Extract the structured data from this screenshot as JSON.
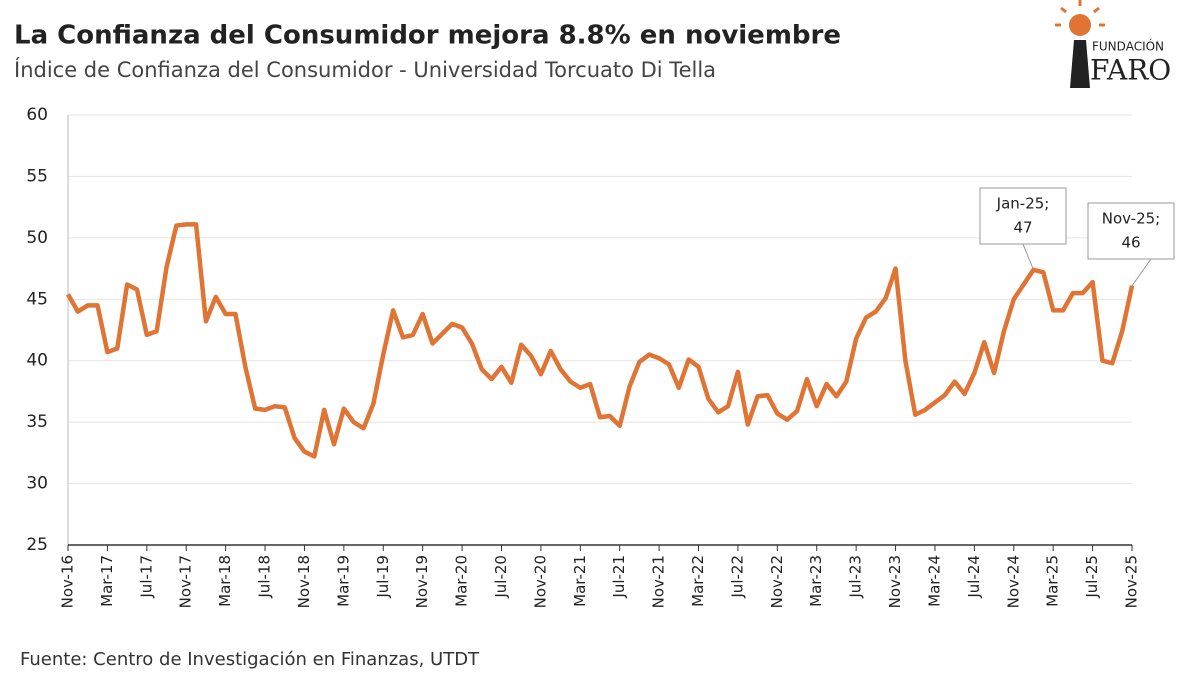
{
  "chart_data": {
    "type": "line",
    "title": "La Confianza del Consumidor mejora 8.8% en noviembre",
    "subtitle": "Índice de Confianza del Consumidor - Universidad Torcuato Di Tella",
    "source": "Fuente: Centro de Investigación en Finanzas, UTDT",
    "logo": {
      "top": "FUNDACIÓN",
      "bottom": "FARO"
    },
    "categories": [
      "Nov-16",
      null,
      null,
      null,
      "Mar-17",
      null,
      null,
      null,
      "Jul-17",
      null,
      null,
      null,
      "Nov-17",
      null,
      null,
      null,
      "Mar-18",
      null,
      null,
      null,
      "Jul-18",
      null,
      null,
      null,
      "Nov-18",
      null,
      null,
      null,
      "Mar-19",
      null,
      null,
      null,
      "Jul-19",
      null,
      null,
      null,
      "Nov-19",
      null,
      null,
      null,
      "Mar-20",
      null,
      null,
      null,
      "Jul-20",
      null,
      null,
      null,
      "Nov-20",
      null,
      null,
      null,
      "Mar-21",
      null,
      null,
      null,
      "Jul-21",
      null,
      null,
      null,
      "Nov-21",
      null,
      null,
      null,
      "Mar-22",
      null,
      null,
      null,
      "Jul-22",
      null,
      null,
      null,
      "Nov-22",
      null,
      null,
      null,
      "Mar-23",
      null,
      null,
      null,
      "Jul-23",
      null,
      null,
      null,
      "Nov-23",
      null,
      null,
      null,
      "Mar-24",
      null,
      null,
      null,
      "Jul-24",
      null,
      null,
      null,
      "Nov-24",
      null,
      null,
      null,
      "Mar-25",
      null,
      null,
      null,
      "Jul-25",
      null,
      null,
      null,
      "Nov-25"
    ],
    "series": [
      {
        "name": "Índice de Confianza del Consumidor",
        "color": "#e07434",
        "values": [
          45.4,
          44,
          44.5,
          44.5,
          40.7,
          41,
          46.2,
          45.8,
          42.1,
          42.4,
          47.6,
          51,
          51.1,
          51.1,
          43.2,
          45.2,
          43.8,
          43.8,
          39.5,
          36.1,
          36,
          36.3,
          36.2,
          33.7,
          32.6,
          32.2,
          36,
          33.2,
          36.1,
          35,
          34.5,
          36.5,
          40.5,
          44.1,
          41.9,
          42.1,
          43.8,
          41.4,
          42.2,
          43,
          42.7,
          41.4,
          39.3,
          38.5,
          39.5,
          38.2,
          41.3,
          40.4,
          38.9,
          40.8,
          39.3,
          38.3,
          37.8,
          38.1,
          35.4,
          35.5,
          34.7,
          37.9,
          39.9,
          40.5,
          40.2,
          39.7,
          37.8,
          40.1,
          39.5,
          36.9,
          35.8,
          36.3,
          39.1,
          34.8,
          37.1,
          37.2,
          35.7,
          35.2,
          35.9,
          38.5,
          36.3,
          38.1,
          37.1,
          38.3,
          41.8,
          43.5,
          44,
          45.1,
          47.5,
          40,
          35.6,
          36,
          36.6,
          37.2,
          38.3,
          37.3,
          39,
          41.5,
          39,
          42.4,
          45,
          46.2,
          47.4,
          47.2,
          44.1,
          44.1,
          45.5,
          45.5,
          46.4,
          40,
          39.8,
          42.4,
          46.1
        ]
      }
    ],
    "annotations": [
      {
        "lines": [
          "Jan-25;",
          "47"
        ]
      },
      {
        "lines": [
          "Nov-25;",
          "46"
        ]
      }
    ],
    "ylim": [
      25,
      60
    ],
    "yticks": [
      25,
      30,
      35,
      40,
      45,
      50,
      55,
      60
    ],
    "grid": true
  }
}
